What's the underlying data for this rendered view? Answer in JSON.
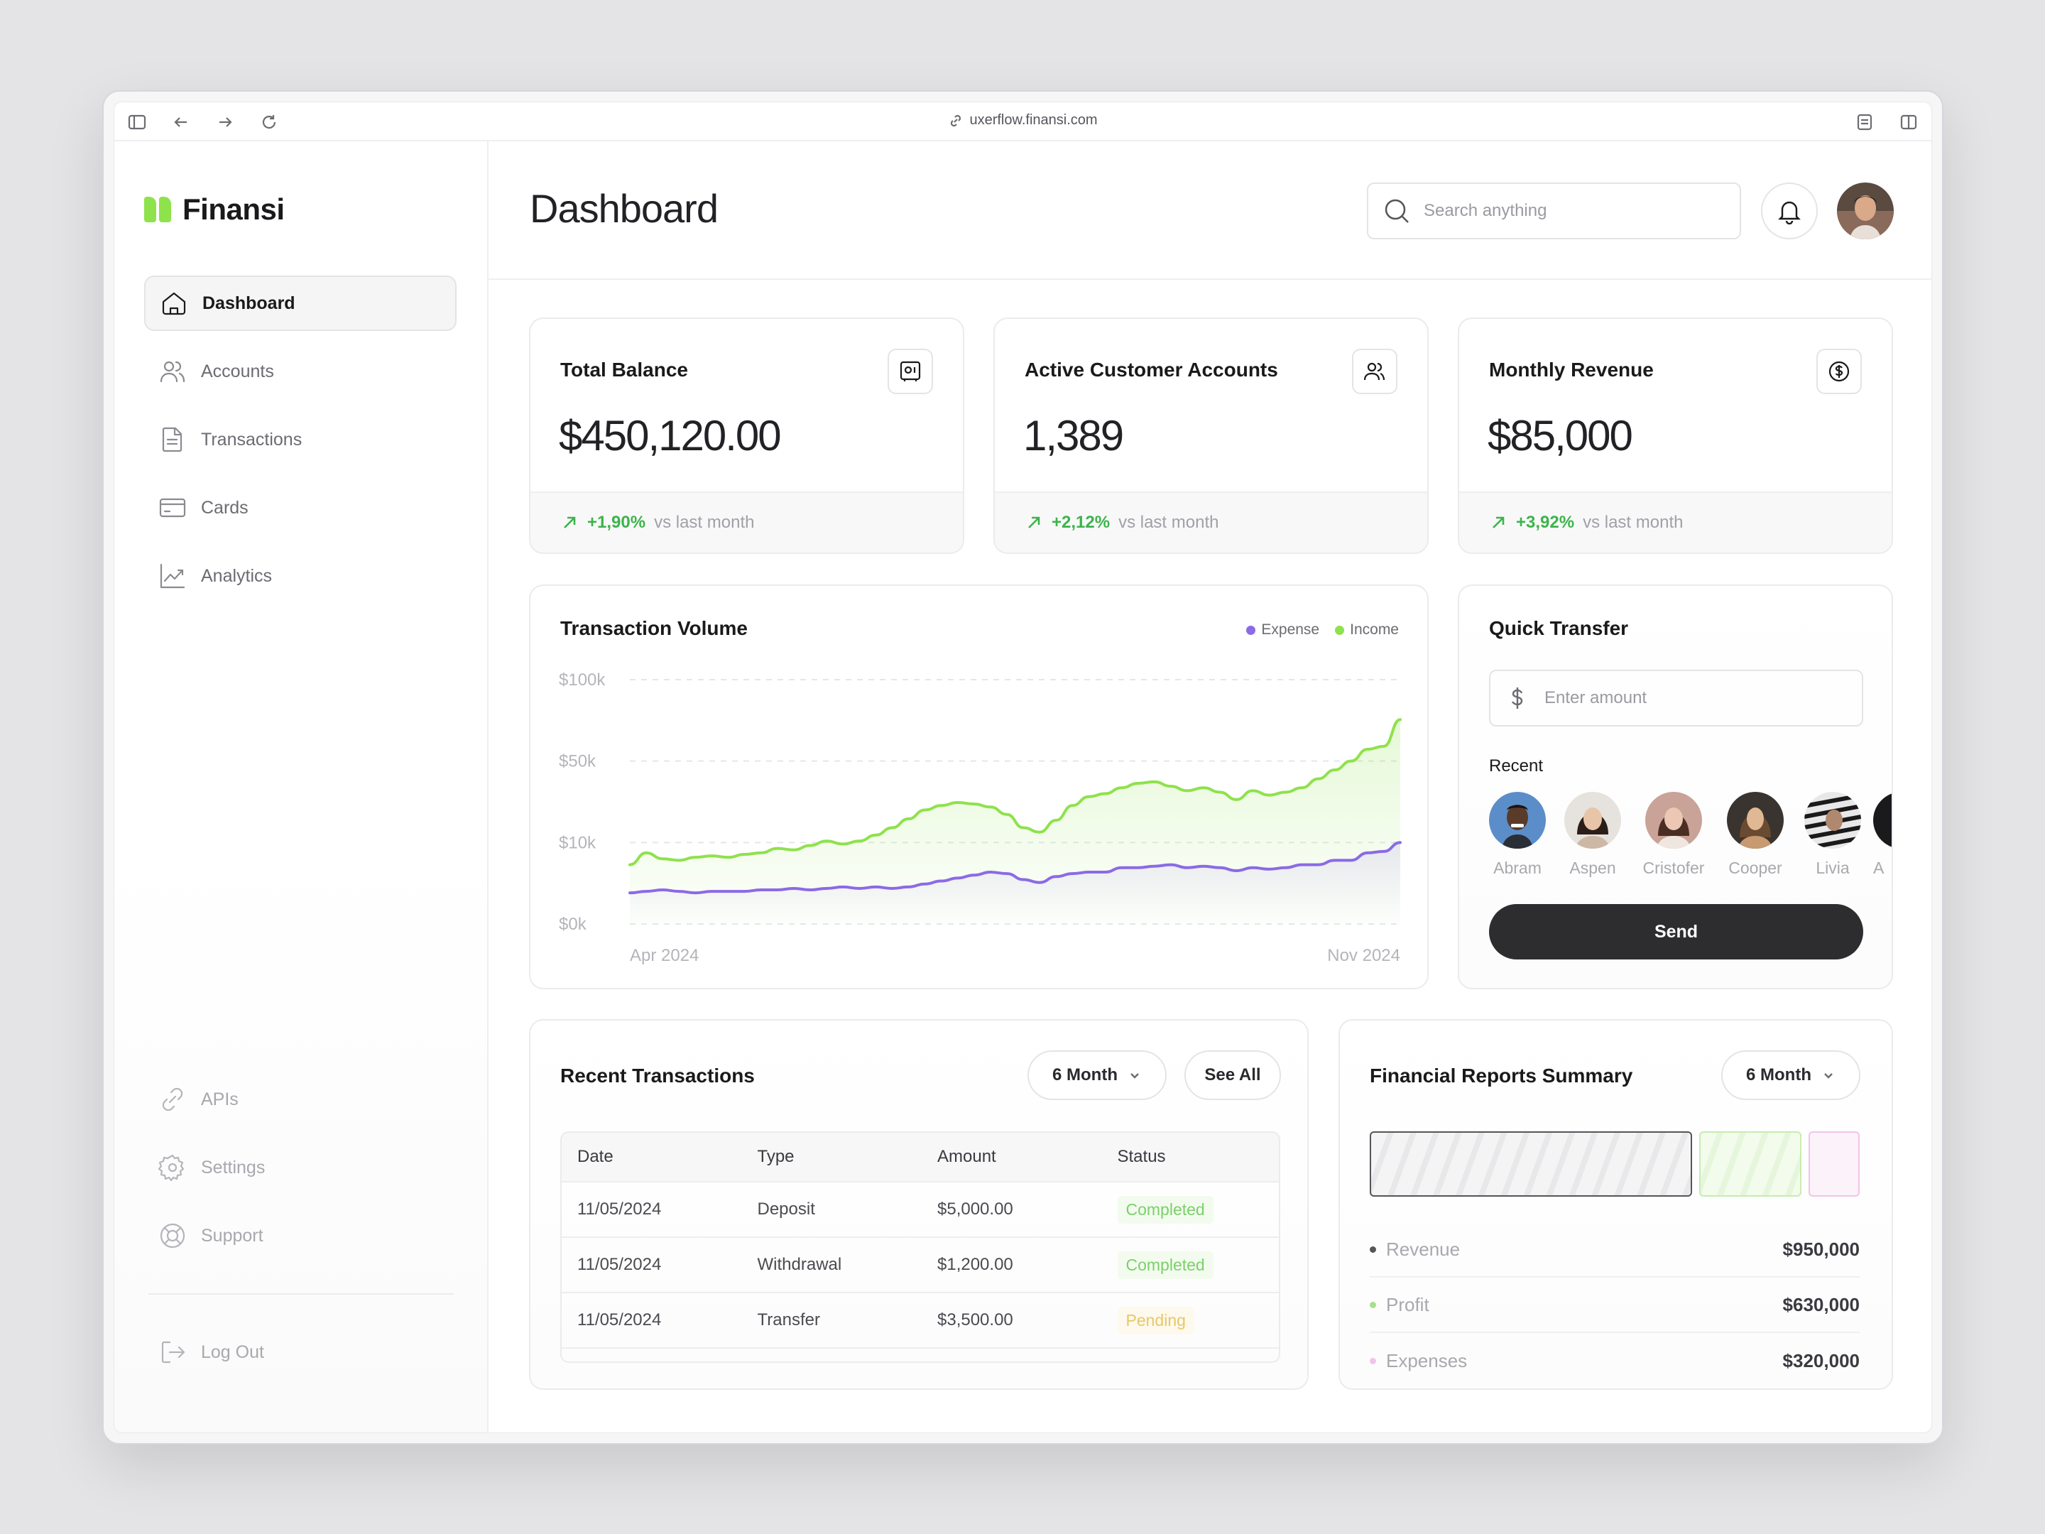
{
  "browser": {
    "url": "uxerflow.finansi.com"
  },
  "app": {
    "name": "Finansi"
  },
  "sidebar": {
    "items": [
      {
        "label": "Dashboard",
        "icon": "home-icon",
        "active": true
      },
      {
        "label": "Accounts",
        "icon": "users-icon"
      },
      {
        "label": "Transactions",
        "icon": "document-icon"
      },
      {
        "label": "Cards",
        "icon": "credit-card-icon"
      },
      {
        "label": "Analytics",
        "icon": "chart-line-icon"
      }
    ],
    "bottom_items": [
      {
        "label": "APIs",
        "icon": "link-icon"
      },
      {
        "label": "Settings",
        "icon": "gear-icon"
      },
      {
        "label": "Support",
        "icon": "lifebuoy-icon"
      }
    ],
    "logout": "Log Out"
  },
  "header": {
    "title": "Dashboard",
    "search_placeholder": "Search anything"
  },
  "stats": [
    {
      "title": "Total Balance",
      "value": "$450,120.00",
      "change": "+1,90%",
      "vs": "vs last month",
      "icon": "safe-icon"
    },
    {
      "title": "Active Customer Accounts",
      "value": "1,389",
      "change": "+2,12%",
      "vs": "vs last month",
      "icon": "users-icon"
    },
    {
      "title": "Monthly Revenue",
      "value": "$85,000",
      "change": "+3,92%",
      "vs": "vs last month",
      "icon": "dollar-circle-icon"
    }
  ],
  "transaction_volume": {
    "title": "Transaction Volume",
    "legend": [
      "Expense",
      "Income"
    ]
  },
  "chart_data": {
    "type": "area",
    "title": "Transaction Volume",
    "y_ticks": [
      "$100k",
      "$50k",
      "$10k",
      "$0k"
    ],
    "x_labels": [
      "Apr 2024",
      "Nov 2024"
    ],
    "series": [
      {
        "name": "Income",
        "color": "#8ee24b",
        "values": [
          40,
          48,
          44,
          43,
          45,
          46,
          45,
          47,
          48,
          51,
          50,
          53,
          56,
          54,
          56,
          60,
          65,
          71,
          77,
          80,
          82,
          81,
          79,
          74,
          65,
          62,
          70,
          80,
          86,
          88,
          92,
          95,
          96,
          93,
          90,
          92,
          89,
          84,
          90,
          87,
          89,
          92,
          98,
          104,
          110,
          118,
          120,
          138
        ]
      },
      {
        "name": "Expense",
        "color": "#8b6ae6",
        "values": [
          21,
          22,
          23,
          22,
          21,
          22,
          22,
          22,
          23,
          23,
          24,
          23,
          24,
          25,
          24,
          25,
          24,
          25,
          27,
          29,
          31,
          33,
          35,
          34,
          30,
          28,
          32,
          34,
          35,
          35,
          38,
          38,
          39,
          40,
          38,
          39,
          38,
          36,
          38,
          37,
          38,
          40,
          40,
          43,
          43,
          48,
          49,
          55
        ]
      }
    ],
    "grid": true
  },
  "quick_transfer": {
    "title": "Quick Transfer",
    "amount_placeholder": "Enter amount",
    "recent_label": "Recent",
    "contacts": [
      "Abram",
      "Aspen",
      "Cristofer",
      "Cooper",
      "Livia",
      "A"
    ],
    "send_label": "Send"
  },
  "recent_transactions": {
    "title": "Recent Transactions",
    "period": "6 Month",
    "see_all": "See All",
    "columns": [
      "Date",
      "Type",
      "Amount",
      "Status"
    ],
    "rows": [
      {
        "date": "11/05/2024",
        "type": "Deposit",
        "amount": "$5,000.00",
        "status": "Completed"
      },
      {
        "date": "11/05/2024",
        "type": "Withdrawal",
        "amount": "$1,200.00",
        "status": "Completed"
      },
      {
        "date": "11/05/2024",
        "type": "Transfer",
        "amount": "$3,500.00",
        "status": "Pending"
      }
    ]
  },
  "financial_summary": {
    "title": "Financial Reports Summary",
    "period": "6 Month",
    "rows": [
      {
        "label": "Revenue",
        "value": "$950,000",
        "color": "#3a3a40",
        "share": 0.63
      },
      {
        "label": "Profit",
        "value": "$630,000",
        "color": "#a8e08a",
        "share": 0.2
      },
      {
        "label": "Expenses",
        "value": "$320,000",
        "color": "#f2c4e8",
        "share": 0.1
      }
    ]
  }
}
